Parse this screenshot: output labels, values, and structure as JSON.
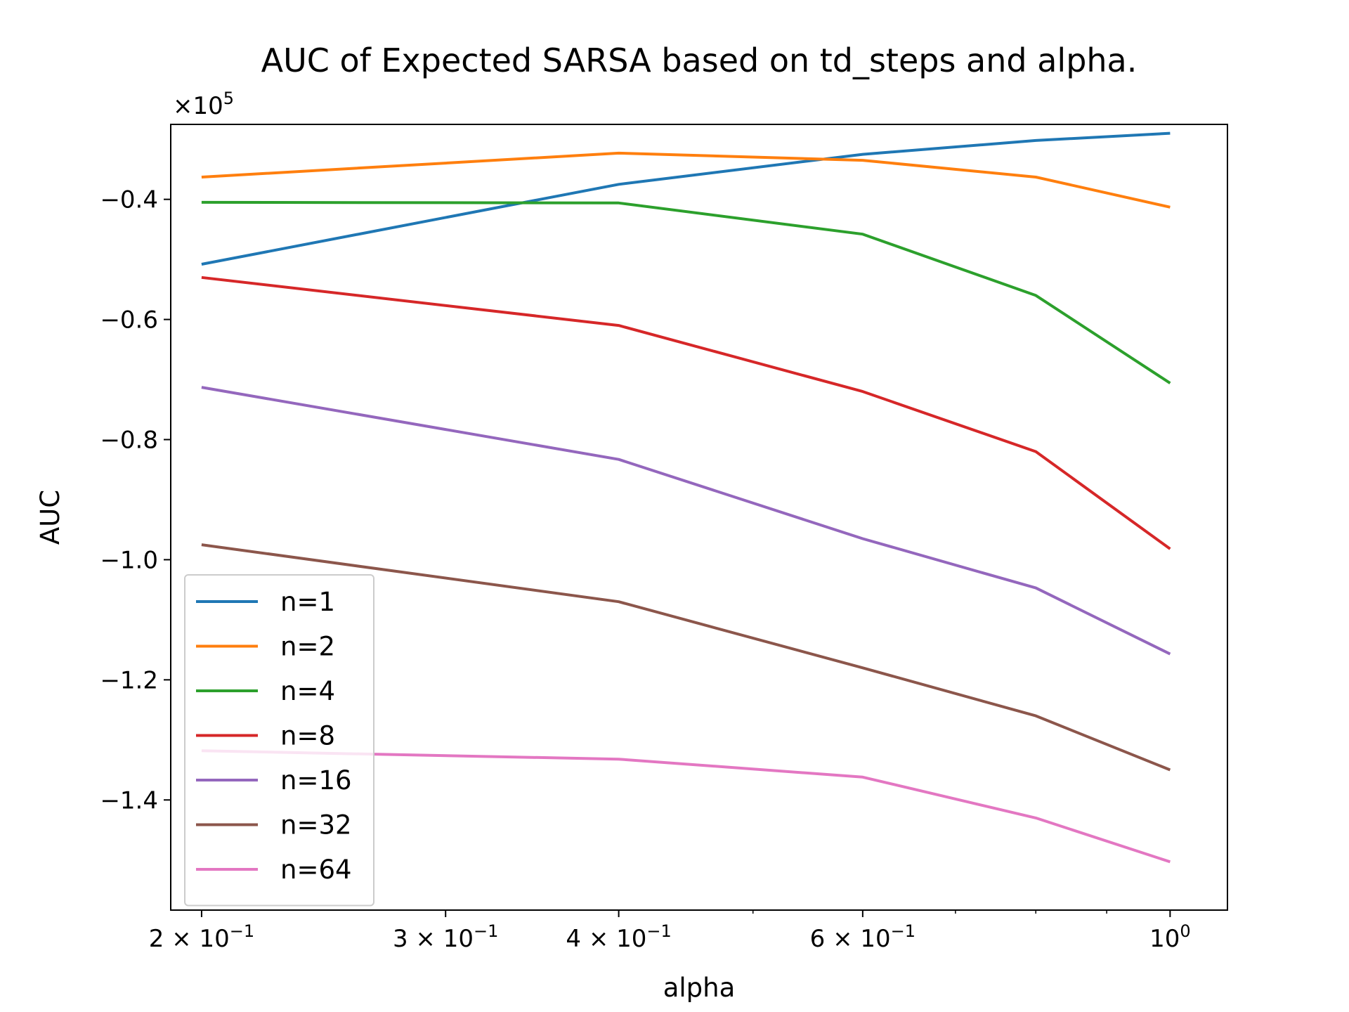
{
  "chart_data": {
    "type": "line",
    "title": "AUC of Expected SARSA based on td_steps and alpha.",
    "xlabel": "alpha",
    "ylabel": "AUC",
    "xscale": "log",
    "yscale": "linear",
    "y_offset_label": "×10",
    "y_offset_exponent": "5",
    "xlim": [
      0.19,
      1.1
    ],
    "ylim": [
      -1.5834,
      -0.2752
    ],
    "x": [
      0.2,
      0.4,
      0.6,
      0.8,
      1.0
    ],
    "x_ticks": [
      {
        "value": 0.2,
        "mantissa": "2",
        "exponent": "−1"
      },
      {
        "value": 0.3,
        "mantissa": "3",
        "exponent": "−1"
      },
      {
        "value": 0.4,
        "mantissa": "4",
        "exponent": "−1"
      },
      {
        "value": 0.6,
        "mantissa": "6",
        "exponent": "−1"
      },
      {
        "value": 1.0,
        "mantissa": "",
        "exponent": "0"
      }
    ],
    "x_minor_ticks": [
      0.5,
      0.7,
      0.8,
      0.9
    ],
    "y_ticks": [
      {
        "value": -0.4,
        "label": "−0.4"
      },
      {
        "value": -0.6,
        "label": "−0.6"
      },
      {
        "value": -0.8,
        "label": "−0.8"
      },
      {
        "value": -1.0,
        "label": "−1.0"
      },
      {
        "value": -1.2,
        "label": "−1.2"
      },
      {
        "value": -1.4,
        "label": "−1.4"
      }
    ],
    "grid": false,
    "legend_position": "lower-left",
    "series": [
      {
        "name": "n=1",
        "color": "#1f77b4",
        "values": [
          -0.508,
          -0.375,
          -0.325,
          -0.302,
          -0.29
        ]
      },
      {
        "name": "n=2",
        "color": "#ff7f0e",
        "values": [
          -0.363,
          -0.323,
          -0.335,
          -0.363,
          -0.413
        ]
      },
      {
        "name": "n=4",
        "color": "#2ca02c",
        "values": [
          -0.405,
          -0.406,
          -0.458,
          -0.56,
          -0.706
        ]
      },
      {
        "name": "n=8",
        "color": "#d62728",
        "values": [
          -0.53,
          -0.61,
          -0.72,
          -0.82,
          -0.982
        ]
      },
      {
        "name": "n=16",
        "color": "#9467bd",
        "values": [
          -0.713,
          -0.833,
          -0.965,
          -1.047,
          -1.157
        ]
      },
      {
        "name": "n=32",
        "color": "#8c564b",
        "values": [
          -0.975,
          -1.07,
          -1.18,
          -1.26,
          -1.35
        ]
      },
      {
        "name": "n=64",
        "color": "#e377c2",
        "values": [
          -1.318,
          -1.332,
          -1.362,
          -1.43,
          -1.503
        ]
      }
    ]
  }
}
